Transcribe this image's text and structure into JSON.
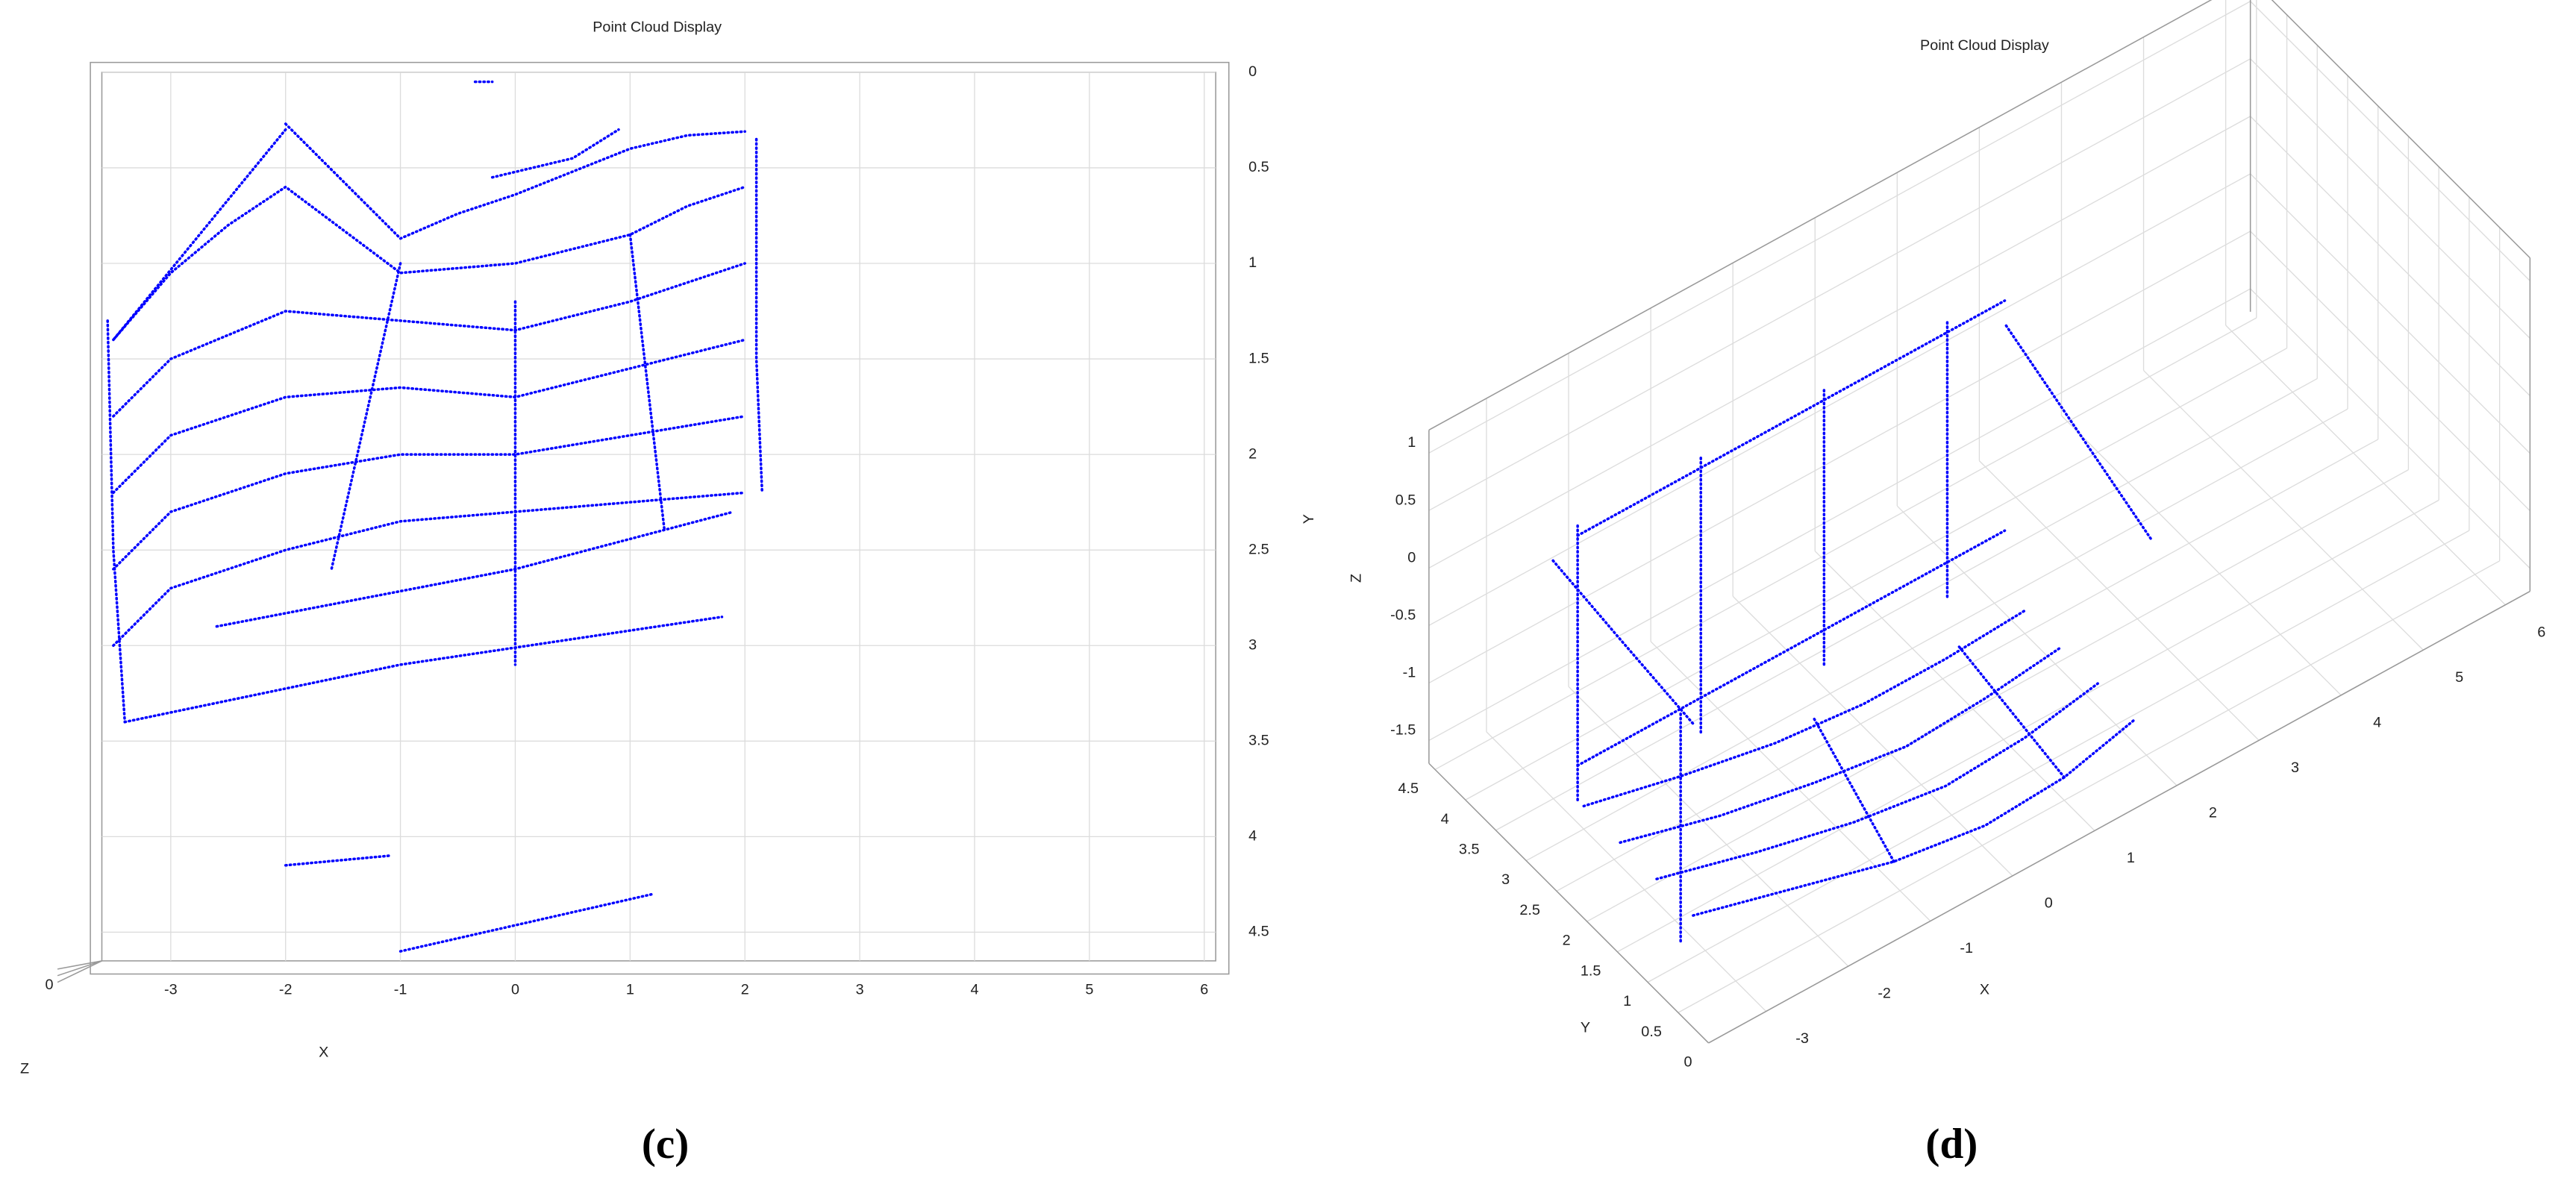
{
  "chart_data": [
    {
      "type": "line",
      "title": "Point Cloud Display",
      "caption": "(c)",
      "xlabel": "X",
      "zlabel": "Z",
      "zticks": [
        0
      ],
      "xlim": [
        -3.6,
        6.1
      ],
      "ylim": [
        0,
        4.65
      ],
      "yreverse": true,
      "xticks": [
        -3,
        -2,
        -1,
        0,
        1,
        2,
        3,
        4,
        5,
        6
      ],
      "yticks": [
        0,
        0.5,
        1,
        1.5,
        2,
        2.5,
        3,
        3.5,
        4,
        4.5
      ],
      "color": "#0000ff",
      "grid": true,
      "series": [
        {
          "x": [
            -2,
            -1.5,
            -1,
            -0.5,
            0,
            0.5,
            1,
            1.5,
            2
          ],
          "y": [
            0.27,
            0.57,
            0.87,
            0.74,
            0.64,
            0.52,
            0.4,
            0.33,
            0.31
          ]
        },
        {
          "x": [
            -3.5,
            -3,
            -2.5,
            -2,
            -1,
            0,
            1,
            1.5,
            2
          ],
          "y": [
            1.4,
            1.05,
            0.8,
            0.6,
            1.05,
            1.0,
            0.85,
            0.7,
            0.6
          ]
        },
        {
          "x": [
            -3.5,
            -3,
            -2,
            -1,
            0,
            1,
            2
          ],
          "y": [
            1.8,
            1.5,
            1.25,
            1.3,
            1.35,
            1.2,
            1.0
          ]
        },
        {
          "x": [
            -3.5,
            -3,
            -2,
            -1,
            0,
            1,
            2
          ],
          "y": [
            2.2,
            1.9,
            1.7,
            1.65,
            1.7,
            1.55,
            1.4
          ]
        },
        {
          "x": [
            -3.5,
            -3,
            -2,
            -1,
            0,
            1,
            2
          ],
          "y": [
            2.6,
            2.3,
            2.1,
            2.0,
            2.0,
            1.9,
            1.8
          ]
        },
        {
          "x": [
            -3.5,
            -3,
            -2,
            -1,
            0,
            1,
            2
          ],
          "y": [
            3.0,
            2.7,
            2.5,
            2.35,
            2.3,
            2.25,
            2.2
          ]
        },
        {
          "x": [
            0,
            0
          ],
          "y": [
            1.2,
            3.1
          ]
        },
        {
          "x": [
            -1,
            -1.6
          ],
          "y": [
            1.0,
            2.6
          ]
        },
        {
          "x": [
            1,
            1.3
          ],
          "y": [
            0.85,
            2.4
          ]
        },
        {
          "x": [
            -2,
            -3.5
          ],
          "y": [
            0.3,
            1.4
          ]
        },
        {
          "x": [
            -3.55,
            -3.5,
            -3.4
          ],
          "y": [
            1.3,
            2.5,
            3.4
          ]
        },
        {
          "x": [
            2.1,
            2.1,
            2.15
          ],
          "y": [
            0.35,
            1.5,
            2.2
          ]
        },
        {
          "x": [
            -3.4,
            -1.0,
            1.8
          ],
          "y": [
            3.4,
            3.1,
            2.85
          ]
        },
        {
          "x": [
            -2.6,
            0,
            1.9
          ],
          "y": [
            2.9,
            2.6,
            2.3
          ]
        },
        {
          "x": [
            -2,
            -1.1
          ],
          "y": [
            4.15,
            4.1
          ]
        },
        {
          "x": [
            -1,
            1.2
          ],
          "y": [
            4.6,
            4.3
          ]
        },
        {
          "x": [
            -0.2,
            0.5,
            0.9
          ],
          "y": [
            0.55,
            0.45,
            0.3
          ]
        },
        {
          "x": [
            -0.35,
            -0.2
          ],
          "y": [
            0.05,
            0.05
          ]
        }
      ]
    },
    {
      "type": "line3d",
      "title": "Point Cloud Display",
      "caption": "(d)",
      "xlabel": "X",
      "ylabel": "Y",
      "zlabel": "Z",
      "annotation": "Y",
      "xlim": [
        -3.7,
        6.3
      ],
      "ylim": [
        0,
        4.6
      ],
      "zlim": [
        -1.7,
        1.2
      ],
      "xticks": [
        -3,
        -2,
        -1,
        0,
        1,
        2,
        3,
        4,
        5,
        6
      ],
      "yticks": [
        0,
        0.5,
        1,
        1.5,
        2,
        2.5,
        3,
        3.5,
        4,
        4.5
      ],
      "zticks": [
        -1.5,
        -1,
        -0.5,
        0,
        0.5,
        1
      ],
      "color": "#0000ff",
      "grid": true,
      "series": [
        {
          "x": [
            -3,
            -2,
            -1,
            0,
            1,
            2
          ],
          "y": [
            1.2,
            0.9,
            0.6,
            0.45,
            0.5,
            0.7
          ],
          "z": [
            -1.5,
            -1.5,
            -1.5,
            -1.5,
            -1.5,
            -1.5
          ]
        },
        {
          "x": [
            -3,
            -2,
            -1,
            0,
            1,
            2
          ],
          "y": [
            1.8,
            1.5,
            1.25,
            1.1,
            1.15,
            1.3
          ],
          "z": [
            -1.5,
            -1.5,
            -1.5,
            -1.5,
            -1.5,
            -1.5
          ]
        },
        {
          "x": [
            -3,
            -2,
            -1,
            0,
            1,
            2
          ],
          "y": [
            2.4,
            2.1,
            1.9,
            1.75,
            1.8,
            1.9
          ],
          "z": [
            -1.5,
            -1.5,
            -1.5,
            -1.5,
            -1.5,
            -1.5
          ]
        },
        {
          "x": [
            -3,
            -2,
            -1,
            0,
            1,
            2
          ],
          "y": [
            3.0,
            2.75,
            2.55,
            2.45,
            2.45,
            2.5
          ],
          "z": [
            -1.5,
            -1.5,
            -1.5,
            -1.5,
            -1.5,
            -1.5
          ]
        },
        {
          "x": [
            -1,
            -0.5
          ],
          "y": [
            0.6,
            2.6
          ],
          "z": [
            -1.5,
            -1.5
          ]
        },
        {
          "x": [
            1,
            1.2
          ],
          "y": [
            0.5,
            2.5
          ],
          "z": [
            -1.5,
            -1.5
          ]
        },
        {
          "x": [
            -3,
            -2,
            -1,
            0,
            1,
            2.2
          ],
          "y": [
            3.1,
            3.1,
            3.1,
            3.1,
            3.1,
            3.1
          ],
          "z": [
            0.8,
            0.8,
            0.8,
            0.8,
            0.8,
            0.8
          ]
        },
        {
          "x": [
            -3,
            -2,
            -1,
            0,
            1,
            2.2
          ],
          "y": [
            3.1,
            3.1,
            3.1,
            3.1,
            3.1,
            3.1
          ],
          "z": [
            -1.2,
            -1.2,
            -1.2,
            -1.2,
            -1.2,
            -1.2
          ]
        },
        {
          "x": [
            -3,
            -3
          ],
          "y": [
            3.1,
            3.1
          ],
          "z": [
            -1.5,
            0.9
          ]
        },
        {
          "x": [
            -1.5,
            -1.5
          ],
          "y": [
            3.1,
            3.1
          ],
          "z": [
            -1.5,
            0.9
          ]
        },
        {
          "x": [
            0,
            0
          ],
          "y": [
            3.1,
            3.1
          ],
          "z": [
            -1.5,
            0.9
          ]
        },
        {
          "x": [
            1.5,
            1.5
          ],
          "y": [
            3.1,
            3.1
          ],
          "z": [
            -1.5,
            0.9
          ]
        },
        {
          "x": [
            -3.3,
            -3.3
          ],
          "y": [
            1,
            1
          ],
          "z": [
            -1.5,
            0.5
          ]
        },
        {
          "x": [
            -3.3,
            -3.3,
            -3.3
          ],
          "y": [
            0.8,
            2,
            3.1
          ],
          "z": [
            0.5,
            0.6,
            0.7
          ]
        },
        {
          "x": [
            2.2,
            2.2
          ],
          "y": [
            0.7,
            3.1
          ],
          "z": [
            0.0,
            0.6
          ]
        }
      ]
    }
  ]
}
